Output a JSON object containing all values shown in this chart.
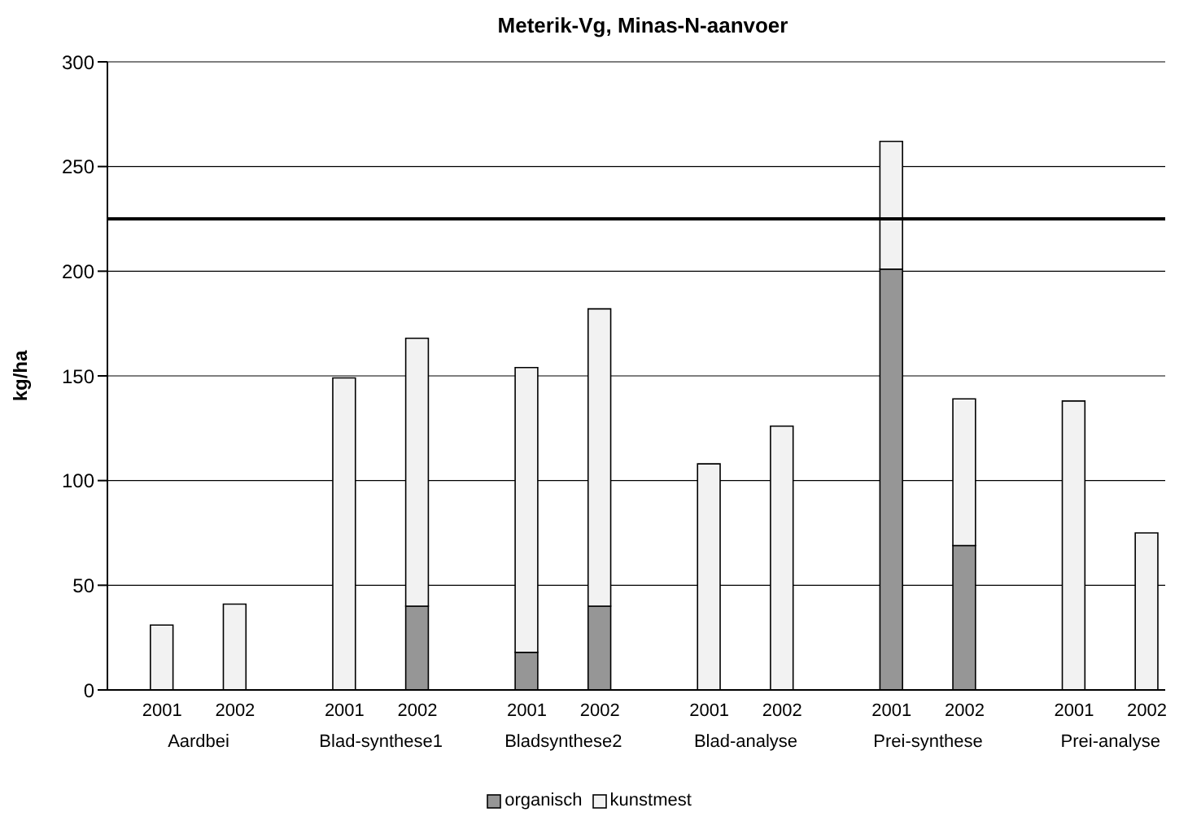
{
  "chart_data": {
    "type": "bar",
    "title": "Meterik-Vg, Minas-N-aanvoer",
    "ylabel": "kg/ha",
    "stacked": true,
    "categories": [
      null,
      "2001",
      null,
      "2002",
      null,
      null,
      "2001",
      null,
      "2002",
      null,
      null,
      "2001",
      null,
      "2002",
      null,
      null,
      "2001",
      null,
      "2002",
      null,
      null,
      "2001",
      null,
      "2002",
      null,
      null,
      "2001",
      null,
      "2002"
    ],
    "series": [
      {
        "name": "organisch",
        "color": "#969696",
        "values": [
          null,
          0,
          null,
          0,
          null,
          null,
          0,
          null,
          40,
          null,
          null,
          18,
          null,
          40,
          null,
          null,
          0,
          null,
          0,
          null,
          null,
          201,
          null,
          69,
          null,
          null,
          0,
          null,
          0
        ]
      },
      {
        "name": "kunstmest",
        "color": "#f2f2f2",
        "values": [
          null,
          31,
          null,
          41,
          null,
          null,
          149,
          null,
          128,
          null,
          null,
          136,
          null,
          142,
          null,
          null,
          108,
          null,
          126,
          null,
          null,
          61,
          null,
          70,
          null,
          null,
          138,
          null,
          75
        ]
      }
    ],
    "ylim": [
      0,
      300
    ],
    "yticks": [
      0,
      50,
      100,
      150,
      200,
      250,
      300
    ],
    "grid": "y",
    "legend": "bottom",
    "ref_lines": [
      {
        "axis": "y",
        "value": 225,
        "color": "#000000"
      }
    ],
    "annotations": [
      "Aardbei",
      "Blad-synthese1",
      "Bladsynthese2",
      "Blad-analyse",
      "Prei-synthese",
      "Prei-analyse"
    ]
  }
}
